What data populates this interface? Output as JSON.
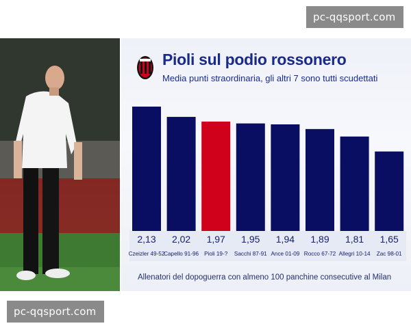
{
  "watermark": {
    "top": "pc-qqsport.com",
    "bottom": "pc-qqsport.com"
  },
  "header": {
    "title": "Pioli sul podio rossonero",
    "subtitle": "Media punti straordinaria, gli altri 7 sono tutti scudettati"
  },
  "footnote": "Allenatori del dopoguerra con almeno 100 panchine consecutive al Milan",
  "colors": {
    "navy": "#0a0e63",
    "red": "#d0021b",
    "text": "#1a2a8c"
  },
  "chart_data": {
    "type": "bar",
    "categories": [
      "Czeizler 49-52",
      "Capello 91-96",
      "Pioli 19-?",
      "Sacchi 87-91",
      "Ance 01-09",
      "Rocco 67-72",
      "Allegri 10-14",
      "Zac 98-01"
    ],
    "values": [
      2.13,
      2.02,
      1.97,
      1.95,
      1.94,
      1.89,
      1.81,
      1.65
    ],
    "value_labels": [
      "2,13",
      "2,02",
      "1,97",
      "1,95",
      "1,94",
      "1,89",
      "1,81",
      "1,65"
    ],
    "highlight": "Pioli 19-?",
    "title": "Pioli sul podio rossonero",
    "xlabel": "",
    "ylabel": "",
    "grid": false
  }
}
